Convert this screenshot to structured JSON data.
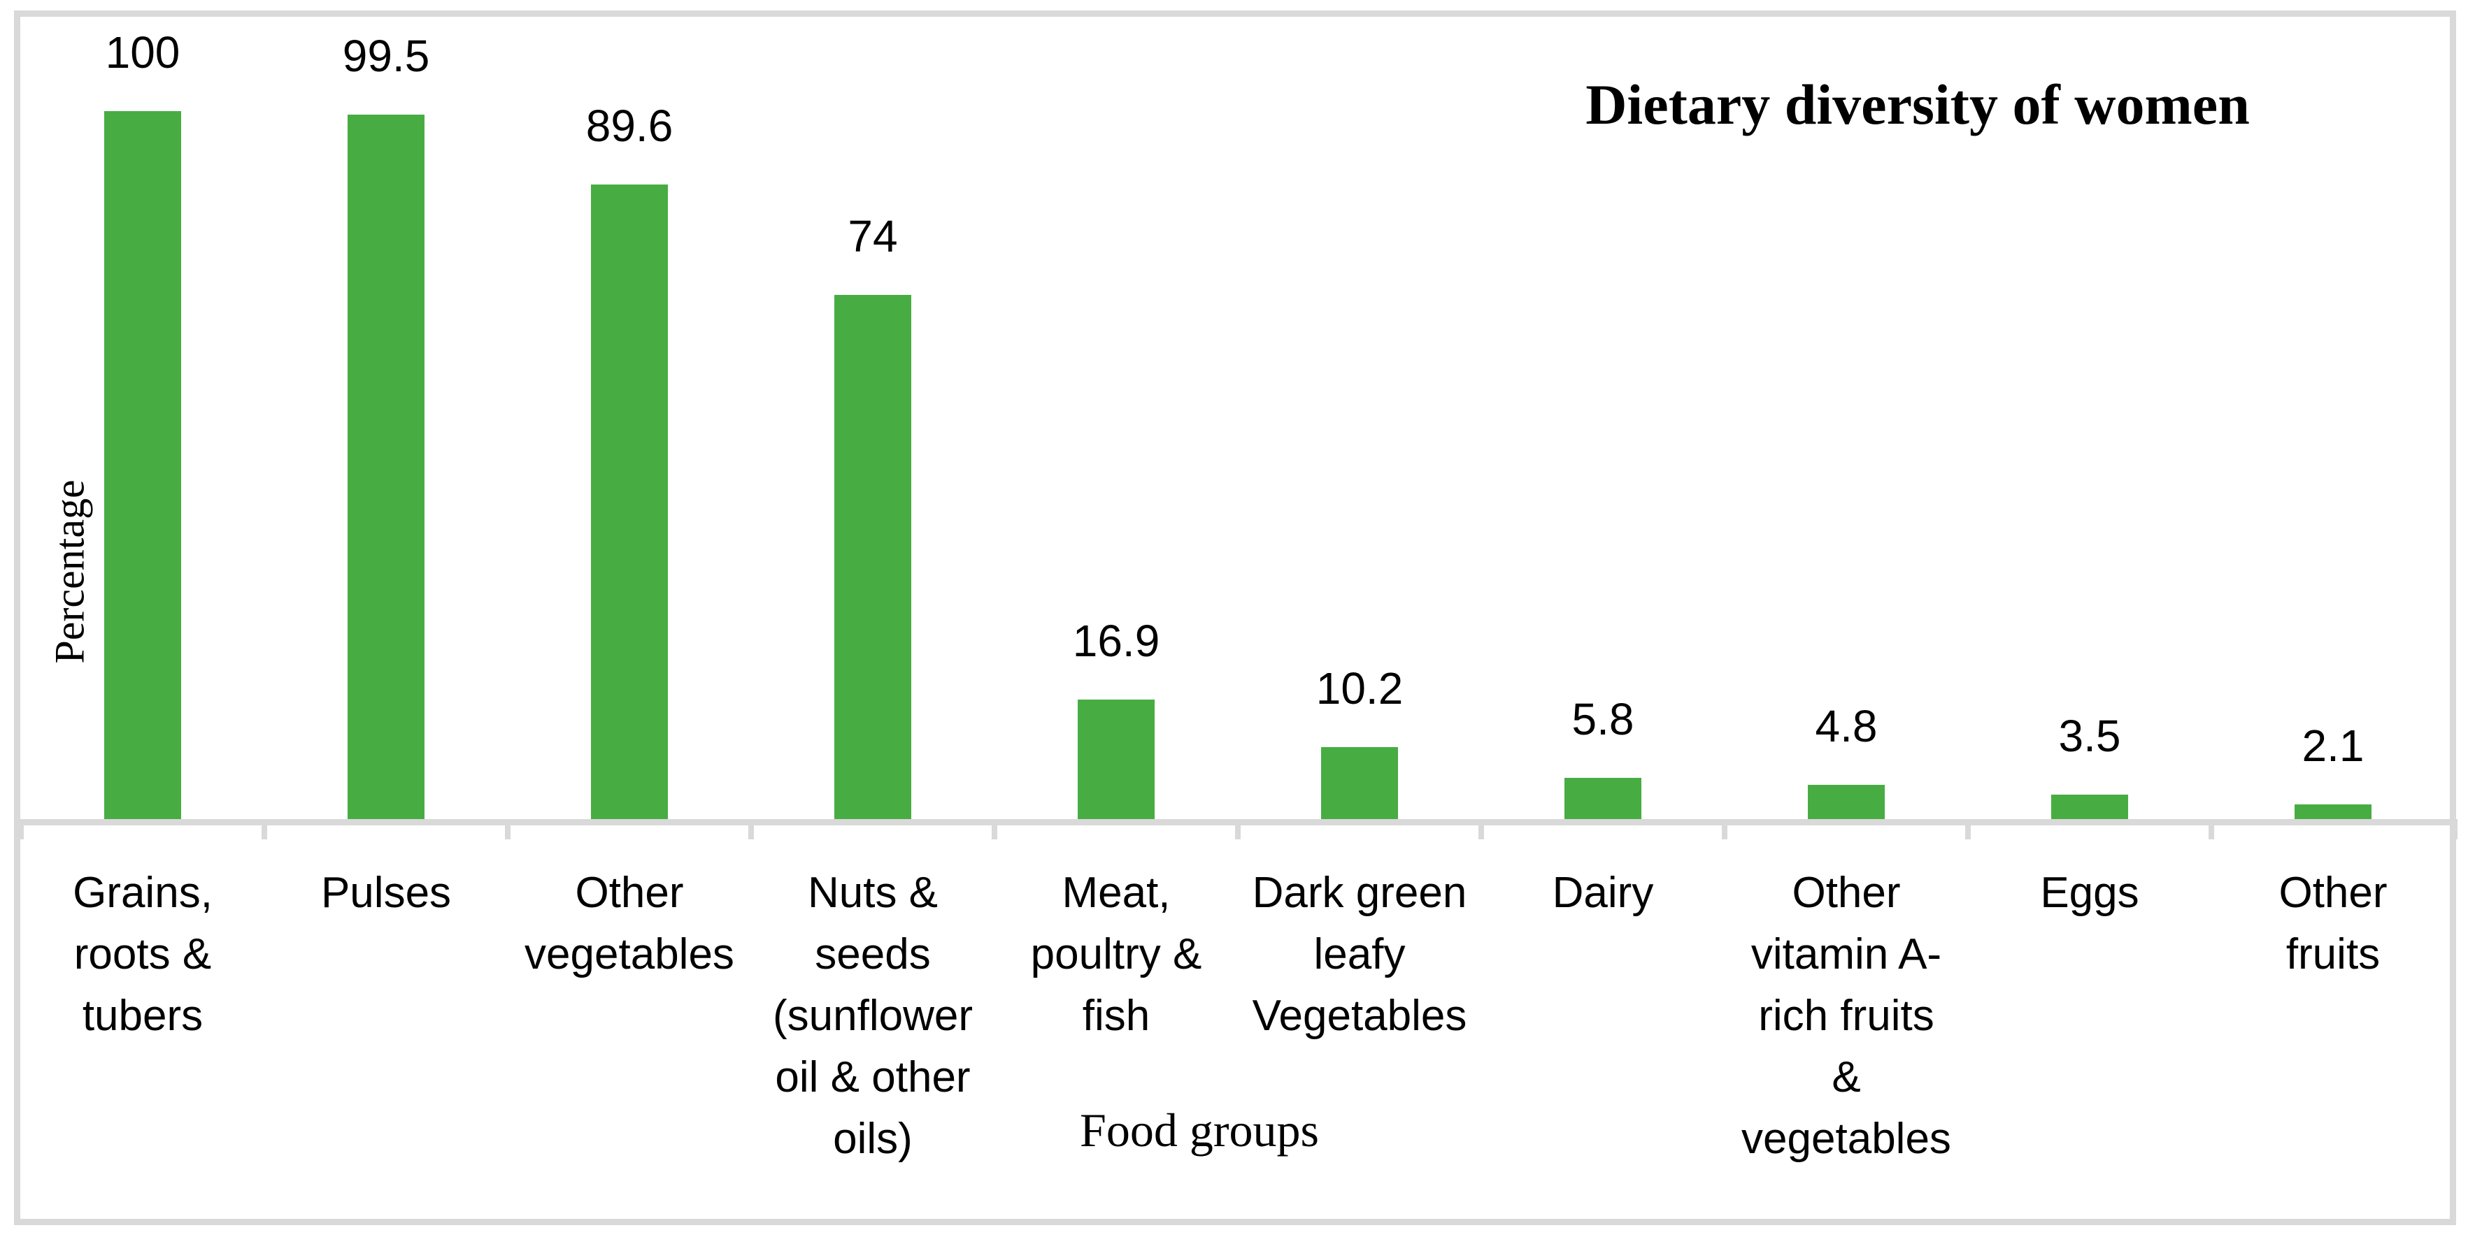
{
  "chart_data": {
    "type": "bar",
    "title": "Dietary diversity of women",
    "xlabel": "Food groups",
    "ylabel": "Percentage",
    "categories": [
      "Grains,\nroots &\ntubers",
      "Pulses",
      "Other\nvegetables",
      "Nuts &\nseeds\n(sunflower\noil & other\noils)",
      "Meat,\npoultry &\nfish",
      "Dark green\nleafy\nVegetables",
      "Dairy",
      "Other\nvitamin A-\nrich fruits\n&\nvegetables",
      "Eggs",
      "Other\nfruits"
    ],
    "values": [
      100,
      99.5,
      89.6,
      74,
      16.9,
      10.2,
      5.8,
      4.8,
      3.5,
      2.1
    ],
    "data_labels": [
      "100",
      "99.5",
      "89.6",
      "74",
      "16.9",
      "10.2",
      "5.8",
      "4.8",
      "3.5",
      "2.1"
    ],
    "ylim": [
      0,
      115
    ],
    "grid": false,
    "legend_position": "none",
    "bar_color": "#47ad43",
    "axis_color": "#d9d9d9",
    "text_color": "#000000"
  }
}
